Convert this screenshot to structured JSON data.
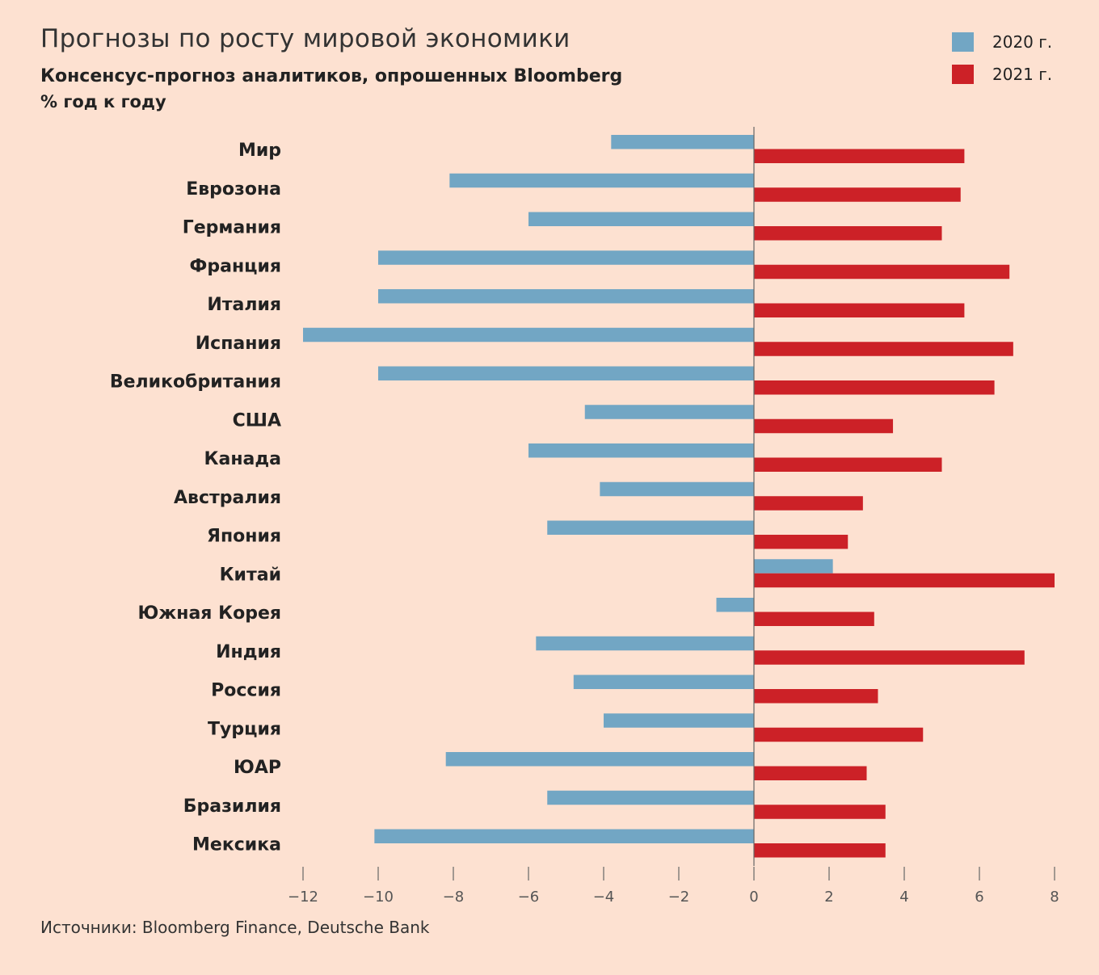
{
  "header": {
    "title": "Прогнозы по росту мировой экономики",
    "subtitle": "Консенсус-прогноз аналитиков, опрошенных Bloomberg",
    "unit": "% год к году"
  },
  "footer": {
    "source": "Источники: Bloomberg Finance, Deutsche Bank"
  },
  "colors": {
    "background": "#fde1d1",
    "series_2020": "#72a6c4",
    "series_2021": "#cc2127",
    "axis": "#666666"
  },
  "chart_data": {
    "type": "bar",
    "orientation": "horizontal",
    "title": "Прогнозы по росту мировой экономики",
    "xlabel": "",
    "ylabel": "",
    "xlim": [
      -12,
      8
    ],
    "xticks": [
      -12,
      -10,
      -8,
      -6,
      -4,
      -2,
      0,
      2,
      4,
      6,
      8
    ],
    "grid": false,
    "legend_position": "top-right",
    "categories": [
      "Мир",
      "Еврозона",
      "Германия",
      "Франция",
      "Италия",
      "Испания",
      "Великобритания",
      "США",
      "Канада",
      "Австралия",
      "Япония",
      "Китай",
      "Южная Корея",
      "Индия",
      "Россия",
      "Турция",
      "ЮАР",
      "Бразилия",
      "Мексика"
    ],
    "series": [
      {
        "name": "2020 г.",
        "color": "#72a6c4",
        "values": [
          -3.8,
          -8.1,
          -6.0,
          -10.0,
          -10.0,
          -12.0,
          -10.0,
          -4.5,
          -6.0,
          -4.1,
          -5.5,
          2.1,
          -1.0,
          -5.8,
          -4.8,
          -4.0,
          -8.2,
          -5.5,
          -10.1
        ]
      },
      {
        "name": "2021 г.",
        "color": "#cc2127",
        "values": [
          5.6,
          5.5,
          5.0,
          6.8,
          5.6,
          6.9,
          6.4,
          3.7,
          5.0,
          2.9,
          2.5,
          8.0,
          3.2,
          7.2,
          3.3,
          4.5,
          3.0,
          3.5,
          3.5
        ]
      }
    ]
  }
}
